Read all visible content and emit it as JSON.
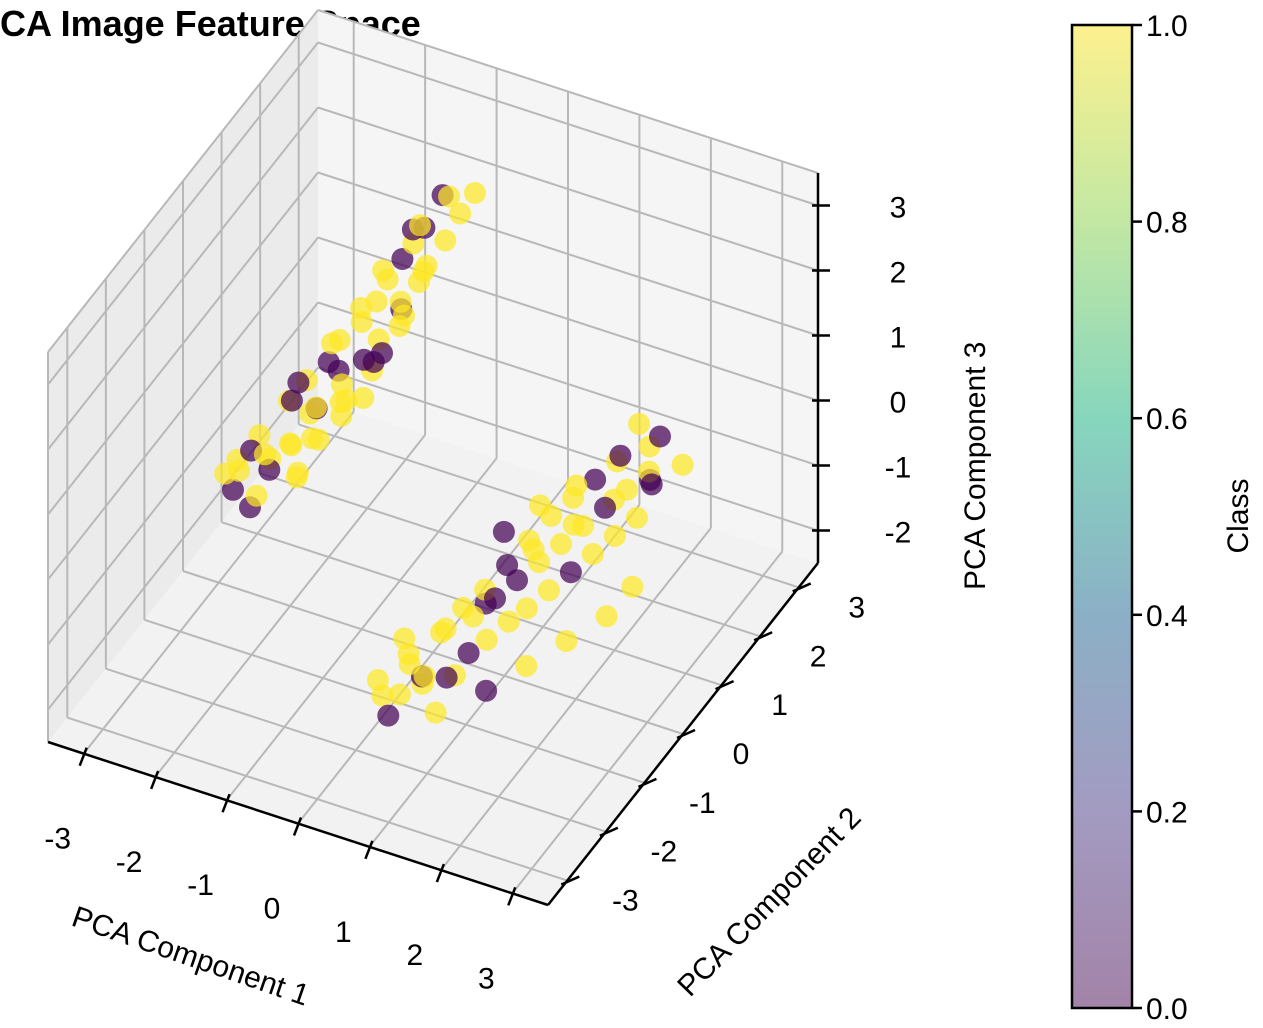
{
  "chart_data": {
    "type": "scatter",
    "title": "CA Image Feature Space",
    "projection": "3d",
    "xlabel": "PCA Component 1",
    "ylabel": "PCA Component 2",
    "zlabel": "PCA Component 3",
    "xlim": [
      -3.5,
      3.5
    ],
    "ylim": [
      -3.5,
      3.5
    ],
    "zlim": [
      -2.5,
      3.5
    ],
    "xticks": [
      "-3",
      "-2",
      "-1",
      "0",
      "1",
      "2",
      "3"
    ],
    "yticks": [
      "-3",
      "-2",
      "-1",
      "0",
      "1",
      "2",
      "3"
    ],
    "zticks": [
      "-2",
      "-1",
      "0",
      "1",
      "2",
      "3"
    ],
    "grid": true,
    "colorbar": {
      "label": "Class",
      "min": 0.0,
      "max": 1.0,
      "ticks": [
        "0.0",
        "0.2",
        "0.4",
        "0.6",
        "0.8",
        "1.0"
      ],
      "colormap": "viridis",
      "color_low": "#440154",
      "color_high": "#fde725",
      "alpha": 0.5
    },
    "clusters": [
      {
        "class": "mixed",
        "x_range": [
          -3.0,
          -0.5
        ],
        "y_range": [
          -1.0,
          2.0
        ],
        "z_range": [
          -1.5,
          3.0
        ]
      },
      {
        "class": "mixed",
        "x_range": [
          0.0,
          3.0
        ],
        "y_range": [
          -2.0,
          1.0
        ],
        "z_range": [
          -2.0,
          1.5
        ]
      }
    ],
    "series": [
      {
        "values": [
          [
            -2.8,
            -0.2,
            -0.6,
            1
          ],
          [
            -2.6,
            0.1,
            -0.4,
            0
          ],
          [
            -2.9,
            0.3,
            -0.8,
            1
          ],
          [
            -2.5,
            -0.4,
            -0.3,
            1
          ],
          [
            -2.7,
            0.5,
            -0.5,
            1
          ],
          [
            -2.4,
            0.2,
            -0.7,
            0
          ],
          [
            -2.3,
            -0.1,
            -0.2,
            1
          ],
          [
            -2.6,
            0.6,
            -0.9,
            1
          ],
          [
            -2.2,
            0.4,
            -0.4,
            1
          ],
          [
            -2.8,
            0.0,
            -1.0,
            0
          ],
          [
            -2.1,
            0.7,
            -0.1,
            1
          ],
          [
            -2.0,
            0.0,
            0.0,
            1
          ],
          [
            -1.9,
            0.5,
            0.2,
            0
          ],
          [
            -2.2,
            0.8,
            0.3,
            1
          ],
          [
            -1.8,
            0.3,
            0.4,
            1
          ],
          [
            -1.7,
            0.9,
            0.1,
            1
          ],
          [
            -2.0,
            1.0,
            0.5,
            0
          ],
          [
            -1.6,
            0.6,
            0.6,
            1
          ],
          [
            -1.5,
            1.2,
            0.4,
            1
          ],
          [
            -1.9,
            1.1,
            0.8,
            1
          ],
          [
            -1.4,
            0.8,
            0.9,
            0
          ],
          [
            -1.7,
            1.3,
            1.0,
            1
          ],
          [
            -1.3,
            1.0,
            1.1,
            1
          ],
          [
            -1.6,
            1.5,
            1.2,
            1
          ],
          [
            -1.2,
            1.4,
            1.3,
            0
          ],
          [
            -1.5,
            1.6,
            1.5,
            1
          ],
          [
            -1.1,
            1.2,
            1.6,
            1
          ],
          [
            -1.4,
            1.8,
            1.7,
            0
          ],
          [
            -1.0,
            1.6,
            1.8,
            1
          ],
          [
            -1.3,
            1.9,
            1.9,
            1
          ],
          [
            -0.9,
            1.5,
            2.0,
            1
          ],
          [
            -1.2,
            2.0,
            2.1,
            0
          ],
          [
            -0.8,
            1.8,
            2.2,
            1
          ],
          [
            -1.1,
            1.7,
            2.4,
            1
          ],
          [
            -0.7,
            2.0,
            2.5,
            1
          ],
          [
            -1.0,
            2.1,
            2.6,
            0
          ],
          [
            -0.8,
            1.9,
            2.8,
            1
          ],
          [
            -0.6,
            2.2,
            2.7,
            1
          ],
          [
            -1.8,
            0.2,
            0.0,
            1
          ],
          [
            -2.1,
            0.4,
            0.6,
            0
          ],
          [
            -1.9,
            0.9,
            0.9,
            1
          ],
          [
            -1.5,
            0.4,
            0.3,
            1
          ],
          [
            -1.7,
            0.7,
            0.7,
            0
          ],
          [
            -1.3,
            0.6,
            0.5,
            1
          ],
          [
            -1.6,
            1.1,
            1.4,
            1
          ],
          [
            -1.2,
            0.9,
            1.0,
            0
          ],
          [
            -1.4,
            1.3,
            1.9,
            1
          ],
          [
            -1.0,
            1.1,
            1.5,
            1
          ],
          [
            -1.2,
            1.7,
            2.3,
            0
          ],
          [
            -0.9,
            1.3,
            1.9,
            1
          ],
          [
            -2.5,
            0.9,
            -0.2,
            1
          ],
          [
            -2.3,
            0.6,
            0.1,
            0
          ],
          [
            -2.0,
            0.2,
            -0.6,
            1
          ],
          [
            -1.8,
            -0.2,
            -0.3,
            1
          ],
          [
            -1.6,
            0.0,
            0.2,
            1
          ],
          [
            -2.4,
            -0.3,
            -0.9,
            0
          ],
          [
            -2.2,
            -0.5,
            -0.5,
            1
          ],
          [
            -1.4,
            0.2,
            0.7,
            1
          ],
          [
            -1.1,
            0.5,
            1.2,
            0
          ],
          [
            -0.9,
            0.8,
            1.6,
            1
          ],
          [
            0.4,
            -1.6,
            -1.8,
            1
          ],
          [
            0.6,
            -1.4,
            -1.6,
            0
          ],
          [
            0.2,
            -1.8,
            -1.5,
            1
          ],
          [
            0.8,
            -1.7,
            -1.3,
            1
          ],
          [
            0.5,
            -1.2,
            -1.9,
            1
          ],
          [
            1.0,
            -1.5,
            -1.4,
            0
          ],
          [
            0.3,
            -1.3,
            -1.2,
            1
          ],
          [
            0.9,
            -1.1,
            -1.7,
            1
          ],
          [
            0.7,
            -1.9,
            -1.0,
            1
          ],
          [
            1.2,
            -1.3,
            -1.1,
            0
          ],
          [
            1.1,
            -1.0,
            -0.8,
            1
          ],
          [
            0.6,
            -0.9,
            -1.3,
            1
          ],
          [
            1.4,
            -1.2,
            -0.9,
            1
          ],
          [
            1.3,
            -0.8,
            -0.6,
            0
          ],
          [
            0.8,
            -0.7,
            -1.0,
            1
          ],
          [
            1.6,
            -1.0,
            -0.7,
            1
          ],
          [
            1.5,
            -0.6,
            -0.4,
            0
          ],
          [
            1.0,
            -0.5,
            -0.8,
            1
          ],
          [
            1.8,
            -0.9,
            -0.5,
            1
          ],
          [
            1.7,
            -0.4,
            -0.2,
            1
          ],
          [
            1.2,
            -0.3,
            -0.5,
            0
          ],
          [
            2.0,
            -0.7,
            -0.3,
            1
          ],
          [
            1.9,
            -0.2,
            0.0,
            1
          ],
          [
            1.4,
            -0.1,
            -0.2,
            1
          ],
          [
            2.2,
            -0.5,
            -0.1,
            0
          ],
          [
            2.1,
            0.0,
            0.2,
            1
          ],
          [
            1.6,
            0.1,
            0.1,
            1
          ],
          [
            2.4,
            -0.3,
            0.1,
            1
          ],
          [
            2.3,
            0.2,
            0.4,
            0
          ],
          [
            1.8,
            0.3,
            0.3,
            1
          ],
          [
            2.6,
            -0.1,
            0.3,
            1
          ],
          [
            2.5,
            0.4,
            0.6,
            1
          ],
          [
            2.0,
            0.5,
            0.5,
            0
          ],
          [
            2.8,
            0.1,
            0.5,
            1
          ],
          [
            2.7,
            0.6,
            0.8,
            1
          ],
          [
            2.2,
            0.7,
            0.7,
            1
          ],
          [
            2.9,
            0.3,
            0.9,
            0
          ],
          [
            2.6,
            0.8,
            1.0,
            1
          ],
          [
            2.4,
            0.9,
            1.2,
            1
          ],
          [
            2.8,
            0.7,
            1.3,
            0
          ],
          [
            0.9,
            -1.6,
            -1.9,
            1
          ],
          [
            1.5,
            -1.4,
            -1.5,
            0
          ],
          [
            1.9,
            -1.1,
            -1.2,
            1
          ],
          [
            2.3,
            -0.8,
            -0.9,
            1
          ],
          [
            2.7,
            -0.5,
            -0.6,
            1
          ],
          [
            1.1,
            -0.2,
            -0.1,
            0
          ],
          [
            1.5,
            0.0,
            0.3,
            1
          ],
          [
            1.9,
            0.2,
            0.6,
            1
          ],
          [
            2.3,
            0.6,
            0.9,
            0
          ],
          [
            2.9,
            -0.2,
            -0.3,
            1
          ],
          [
            0.2,
            -1.0,
            -1.7,
            1
          ],
          [
            0.5,
            -0.6,
            -1.5,
            1
          ],
          [
            0.9,
            -0.3,
            -1.2,
            0
          ],
          [
            1.3,
            0.2,
            -0.6,
            1
          ],
          [
            1.7,
            0.5,
            -0.3,
            1
          ],
          [
            2.1,
            0.8,
            0.0,
            1
          ],
          [
            2.5,
            1.0,
            0.3,
            0
          ],
          [
            2.9,
            1.1,
            0.6,
            1
          ],
          [
            0.1,
            -1.5,
            -2.0,
            1
          ],
          [
            0.4,
            -1.9,
            -1.9,
            0
          ]
        ]
      }
    ]
  }
}
